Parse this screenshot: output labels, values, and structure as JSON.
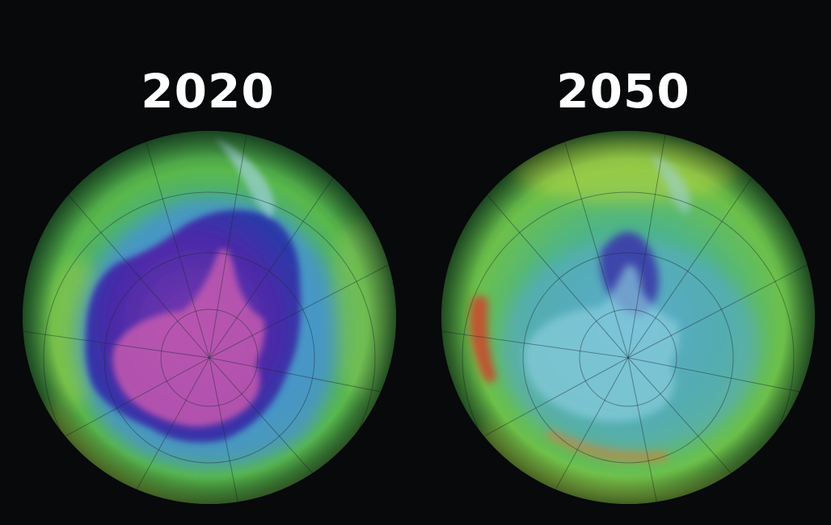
{
  "panels": [
    {
      "year": "2020"
    },
    {
      "year": "2050"
    }
  ],
  "colors": {
    "background": "#07090a",
    "ozone_high": "#c8d840",
    "ozone_mid": "#3fae5a",
    "ozone_low": "#4a8fd0",
    "hole_deep": "#3a2a9a",
    "hole_core": "#9a4ab0",
    "hotspot": "#d63a2a"
  }
}
